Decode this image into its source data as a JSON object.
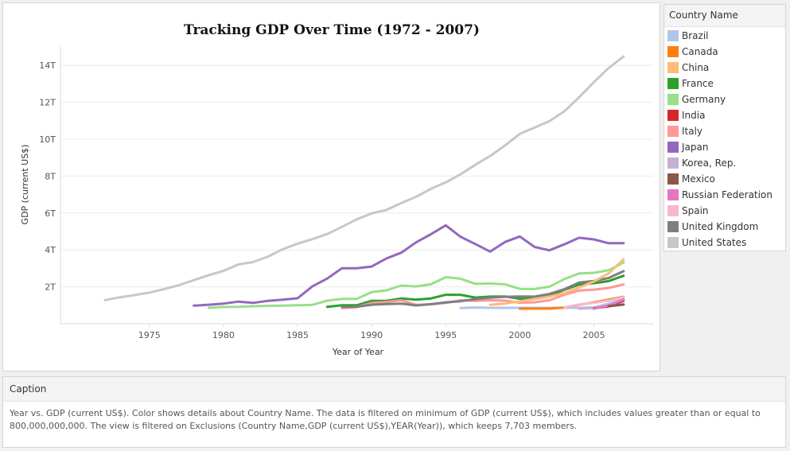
{
  "legend": {
    "title": "Country Name",
    "items": [
      {
        "label": "Brazil",
        "color": "#aec7e8"
      },
      {
        "label": "Canada",
        "color": "#ff7f0e"
      },
      {
        "label": "China",
        "color": "#ffbb78"
      },
      {
        "label": "France",
        "color": "#2ca02c"
      },
      {
        "label": "Germany",
        "color": "#98df8a"
      },
      {
        "label": "India",
        "color": "#d62728"
      },
      {
        "label": "Italy",
        "color": "#ff9896"
      },
      {
        "label": "Japan",
        "color": "#9467bd"
      },
      {
        "label": "Korea, Rep.",
        "color": "#c5b0d5"
      },
      {
        "label": "Mexico",
        "color": "#8c564b"
      },
      {
        "label": "Russian Federation",
        "color": "#e377c2"
      },
      {
        "label": "Spain",
        "color": "#f7b6d2"
      },
      {
        "label": "United Kingdom",
        "color": "#7f7f7f"
      },
      {
        "label": "United States",
        "color": "#c7c7c7"
      }
    ]
  },
  "caption": {
    "header": "Caption",
    "text": "Year vs. GDP (current US$).  Color shows details about Country Name. The data is filtered on minimum of GDP (current US$), which includes values greater than or equal to 800,000,000,000. The view is filtered on Exclusions (Country Name,GDP (current US$),YEAR(Year)), which keeps 7,703 members."
  },
  "chart_data": {
    "type": "line",
    "title": "Tracking GDP Over Time  (1972 - 2007)",
    "xlabel": "Year of Year",
    "ylabel": "GDP (current US$)",
    "xlim": [
      1969,
      2009
    ],
    "ylim": [
      0,
      15
    ],
    "x_ticks": [
      1975,
      1980,
      1985,
      1990,
      1995,
      2000,
      2005
    ],
    "y_ticks": [
      2,
      4,
      6,
      8,
      10,
      12,
      14
    ],
    "y_tick_labels": [
      "2T",
      "4T",
      "6T",
      "8T",
      "10T",
      "12T",
      "14T"
    ],
    "y_unit": "trillions current US$",
    "grid": "horizontal",
    "legend_position": "right",
    "series": [
      {
        "name": "United States",
        "color": "#c7c7c7",
        "x": [
          1972,
          1973,
          1974,
          1975,
          1976,
          1977,
          1978,
          1979,
          1980,
          1981,
          1982,
          1983,
          1984,
          1985,
          1986,
          1987,
          1988,
          1989,
          1990,
          1991,
          1992,
          1993,
          1994,
          1995,
          1996,
          1997,
          1998,
          1999,
          2000,
          2001,
          2002,
          2003,
          2004,
          2005,
          2006,
          2007
        ],
        "values": [
          1.28,
          1.43,
          1.55,
          1.69,
          1.88,
          2.09,
          2.36,
          2.63,
          2.86,
          3.21,
          3.34,
          3.64,
          4.04,
          4.34,
          4.58,
          4.86,
          5.25,
          5.66,
          5.98,
          6.17,
          6.54,
          6.88,
          7.31,
          7.66,
          8.1,
          8.61,
          9.09,
          9.66,
          10.29,
          10.63,
          10.98,
          11.51,
          12.27,
          13.09,
          13.86,
          14.48
        ]
      },
      {
        "name": "Japan",
        "color": "#9467bd",
        "x": [
          1978,
          1979,
          1980,
          1981,
          1982,
          1983,
          1984,
          1985,
          1986,
          1987,
          1988,
          1989,
          1990,
          1991,
          1992,
          1993,
          1994,
          1995,
          1996,
          1997,
          1998,
          1999,
          2000,
          2001,
          2002,
          2003,
          2004,
          2005,
          2006,
          2007
        ],
        "values": [
          0.98,
          1.03,
          1.09,
          1.2,
          1.13,
          1.24,
          1.3,
          1.38,
          2.02,
          2.45,
          3.01,
          3.01,
          3.1,
          3.54,
          3.85,
          4.41,
          4.85,
          5.33,
          4.71,
          4.32,
          3.91,
          4.43,
          4.73,
          4.16,
          3.98,
          4.3,
          4.66,
          4.57,
          4.36,
          4.36
        ]
      },
      {
        "name": "Germany",
        "color": "#98df8a",
        "x": [
          1979,
          1980,
          1981,
          1982,
          1983,
          1984,
          1985,
          1986,
          1987,
          1988,
          1989,
          1990,
          1991,
          1992,
          1993,
          1994,
          1995,
          1996,
          1997,
          1998,
          1999,
          2000,
          2001,
          2002,
          2003,
          2004,
          2005,
          2006,
          2007
        ],
        "values": [
          0.86,
          0.91,
          0.92,
          0.95,
          0.97,
          0.98,
          1.0,
          1.02,
          1.25,
          1.35,
          1.35,
          1.71,
          1.81,
          2.07,
          2.02,
          2.14,
          2.52,
          2.44,
          2.16,
          2.18,
          2.14,
          1.89,
          1.88,
          2.01,
          2.42,
          2.73,
          2.76,
          2.9,
          3.32
        ]
      },
      {
        "name": "France",
        "color": "#2ca02c",
        "x": [
          1987,
          1988,
          1989,
          1990,
          1991,
          1992,
          1993,
          1994,
          1995,
          1996,
          1997,
          1998,
          1999,
          2000,
          2001,
          2002,
          2003,
          2004,
          2005,
          2006,
          2007
        ],
        "values": [
          0.92,
          1.0,
          1.0,
          1.24,
          1.24,
          1.37,
          1.3,
          1.37,
          1.57,
          1.57,
          1.42,
          1.47,
          1.48,
          1.35,
          1.37,
          1.49,
          1.84,
          2.12,
          2.2,
          2.31,
          2.6
        ]
      },
      {
        "name": "Italy",
        "color": "#ff9896",
        "x": [
          1988,
          1989,
          1990,
          1991,
          1992,
          1993,
          1994,
          1995,
          1996,
          1997,
          1998,
          1999,
          2000,
          2001,
          2002,
          2003,
          2004,
          2005,
          2006,
          2007
        ],
        "values": [
          0.85,
          0.9,
          1.13,
          1.18,
          1.27,
          1.02,
          1.05,
          1.13,
          1.27,
          1.24,
          1.27,
          1.25,
          1.14,
          1.16,
          1.27,
          1.57,
          1.8,
          1.85,
          1.94,
          2.13
        ]
      },
      {
        "name": "United Kingdom",
        "color": "#7f7f7f",
        "x": [
          1988,
          1989,
          1990,
          1991,
          1992,
          1993,
          1994,
          1995,
          1996,
          1997,
          1998,
          1999,
          2000,
          2001,
          2002,
          2003,
          2004,
          2005,
          2006,
          2007
        ],
        "values": [
          0.91,
          0.92,
          1.03,
          1.07,
          1.09,
          0.99,
          1.06,
          1.16,
          1.22,
          1.33,
          1.41,
          1.46,
          1.48,
          1.47,
          1.61,
          1.87,
          2.23,
          2.32,
          2.48,
          2.85
        ]
      },
      {
        "name": "China",
        "color": "#ffbb78",
        "x": [
          1998,
          1999,
          2000,
          2001,
          2002,
          2003,
          2004,
          2005,
          2006,
          2007
        ],
        "values": [
          1.03,
          1.09,
          1.21,
          1.34,
          1.47,
          1.66,
          1.96,
          2.29,
          2.73,
          3.49
        ]
      },
      {
        "name": "Brazil",
        "color": "#aec7e8",
        "x": [
          1996,
          1997,
          1998,
          1999,
          2000,
          2001,
          2002,
          2003,
          2004,
          2005,
          2006,
          2007
        ],
        "values": [
          0.85,
          0.88,
          0.86,
          0.86,
          0.86,
          0.86,
          0.86,
          0.86,
          0.86,
          0.89,
          1.09,
          1.37
        ]
      },
      {
        "name": "Canada",
        "color": "#ff7f0e",
        "x": [
          2000,
          2001,
          2002,
          2003,
          2004,
          2005,
          2006,
          2007
        ],
        "values": [
          0.82,
          0.82,
          0.82,
          0.88,
          1.02,
          1.16,
          1.31,
          1.46
        ]
      },
      {
        "name": "Spain",
        "color": "#f7b6d2",
        "x": [
          2003,
          2004,
          2005,
          2006,
          2007
        ],
        "values": [
          0.88,
          1.04,
          1.13,
          1.26,
          1.44
        ]
      },
      {
        "name": "Korea, Rep.",
        "color": "#c5b0d5",
        "x": [
          2004,
          2005,
          2006,
          2007
        ],
        "values": [
          0.82,
          0.85,
          0.95,
          1.05
        ]
      },
      {
        "name": "India",
        "color": "#d62728",
        "x": [
          2005,
          2006,
          2007
        ],
        "values": [
          0.83,
          0.95,
          1.24
        ]
      },
      {
        "name": "Russian Federation",
        "color": "#e377c2",
        "x": [
          2005,
          2006,
          2007
        ],
        "values": [
          0.81,
          0.99,
          1.3
        ]
      },
      {
        "name": "Mexico",
        "color": "#8c564b",
        "x": [
          2006,
          2007
        ],
        "values": [
          0.95,
          1.04
        ]
      }
    ]
  }
}
